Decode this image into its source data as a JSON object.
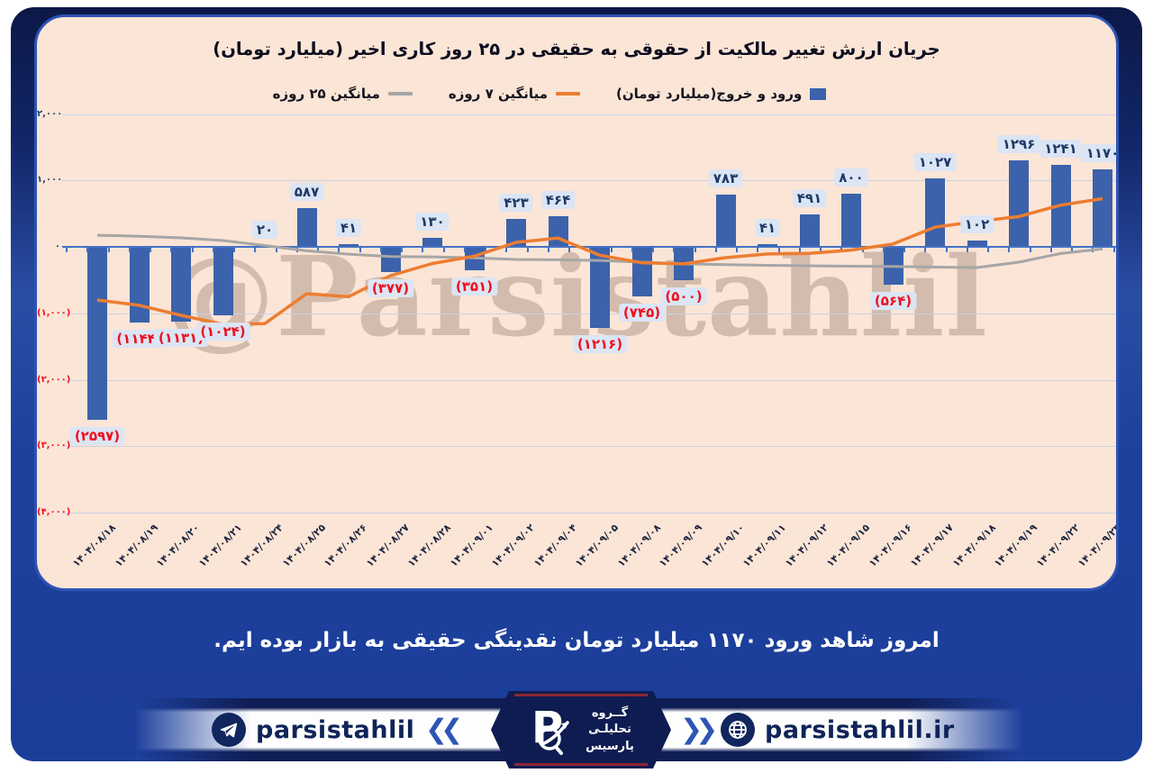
{
  "title": "جریان ارزش تغییر مالکیت از حقوقی به حقیقی در ۲۵ روز کاری اخیر (میلیارد تومان)",
  "watermark": "@Parsistahlil",
  "caption": "امروز شاهد ورود ۱۱۷۰ میلیارد تومان نقدینگی حقیقی به بازار بوده ایم.",
  "chart_data": {
    "type": "bar",
    "title": "جریان ارزش تغییر مالکیت از حقوقی به حقیقی در ۲۵ روز کاری اخیر (میلیارد تومان)",
    "categories": [
      "۱۴۰۴/۰۸/۱۸",
      "۱۴۰۴/۰۸/۱۹",
      "۱۴۰۴/۰۸/۲۰",
      "۱۴۰۴/۰۸/۲۱",
      "۱۴۰۴/۰۸/۲۴",
      "۱۴۰۴/۰۸/۲۵",
      "۱۴۰۴/۰۸/۲۶",
      "۱۴۰۴/۰۸/۲۷",
      "۱۴۰۴/۰۸/۲۸",
      "۱۴۰۴/۰۹/۰۱",
      "۱۴۰۴/۰۹/۰۲",
      "۱۴۰۴/۰۹/۰۴",
      "۱۴۰۴/۰۹/۰۵",
      "۱۴۰۴/۰۹/۰۸",
      "۱۴۰۴/۰۹/۰۹",
      "۱۴۰۴/۰۹/۱۰",
      "۱۴۰۴/۰۹/۱۱",
      "۱۴۰۴/۰۹/۱۲",
      "۱۴۰۴/۰۹/۱۵",
      "۱۴۰۴/۰۹/۱۶",
      "۱۴۰۴/۰۹/۱۷",
      "۱۴۰۴/۰۹/۱۸",
      "۱۴۰۴/۰۹/۱۹",
      "۱۴۰۴/۰۹/۲۲",
      "۱۴۰۴/۰۹/۲۳"
    ],
    "series": [
      {
        "name": "ورود و خروج(میلیارد تومان)",
        "type": "bar",
        "color": "#3b62ab",
        "values": [
          -2597,
          -1144,
          -1131,
          -1024,
          20,
          587,
          41,
          -377,
          130,
          -351,
          423,
          464,
          -1216,
          -745,
          -500,
          783,
          41,
          491,
          800,
          -564,
          1027,
          102,
          1296,
          1241,
          1170
        ],
        "labels": [
          "(۲۵۹۷)",
          "(۱۱۴۴)",
          "(۱۱۳۱)",
          "(۱۰۲۴)",
          "۲۰",
          "۵۸۷",
          "۴۱",
          "(۳۷۷)",
          "۱۳۰",
          "(۳۵۱)",
          "۴۲۳",
          "۴۶۴",
          "(۱۲۱۶)",
          "(۷۴۵)",
          "(۵۰۰)",
          "۷۸۳",
          "۴۱",
          "۴۹۱",
          "۸۰۰",
          "(۵۶۴)",
          "۱۰۲۷",
          "۱۰۲",
          "۱۲۹۶",
          "۱۲۴۱",
          "۱۱۷۰"
        ]
      },
      {
        "name": "میانگین ۷ روزه",
        "type": "line",
        "color": "#ed7d31",
        "values": [
          -800,
          -880,
          -1030,
          -1165,
          -1155,
          -705,
          -750,
          -433,
          -251,
          -139,
          68,
          131,
          -127,
          -239,
          -256,
          -163,
          -107,
          -97,
          -49,
          44,
          297,
          383,
          456,
          628,
          725
        ]
      },
      {
        "name": "میانگین ۲۵ روزه",
        "type": "line",
        "color": "#a6a6a6",
        "values": [
          175,
          160,
          135,
          95,
          20,
          -60,
          -110,
          -145,
          -150,
          -165,
          -190,
          -195,
          -205,
          -230,
          -255,
          -268,
          -278,
          -285,
          -292,
          -295,
          -305,
          -312,
          -230,
          -100,
          -30
        ]
      }
    ],
    "y_ticks": [
      {
        "label": "۲,۰۰۰",
        "value": 2000,
        "negative": false
      },
      {
        "label": "۱,۰۰۰",
        "value": 1000,
        "negative": false
      },
      {
        "label": "۰",
        "value": 0,
        "negative": false
      },
      {
        "label": "(۱,۰۰۰)",
        "value": -1000,
        "negative": true
      },
      {
        "label": "(۲,۰۰۰)",
        "value": -2000,
        "negative": true
      },
      {
        "label": "(۳,۰۰۰)",
        "value": -3000,
        "negative": true
      },
      {
        "label": "(۴,۰۰۰)",
        "value": -4000,
        "negative": true
      }
    ],
    "ylim": [
      -4000,
      2000
    ],
    "grid": true,
    "legend_position": "top"
  },
  "footer": {
    "telegram_handle": "parsistahlil",
    "website": "parsistahlil.ir",
    "logo_letter": "P",
    "logo_text_lines": [
      "گــروه",
      "تحلیلـی",
      "پارسیس"
    ]
  },
  "colors": {
    "bar": "#3b62ab",
    "ma7_line": "#ed7d31",
    "ma25_line": "#a6a6a6",
    "card_bg": "#fbe5d6",
    "panel_blue": "#1d409c",
    "panel_dark_navy": "#0e1c52",
    "negative_label": "#f00f1e",
    "positive_label": "#1f3a66",
    "axis_blue": "#4472c4"
  }
}
